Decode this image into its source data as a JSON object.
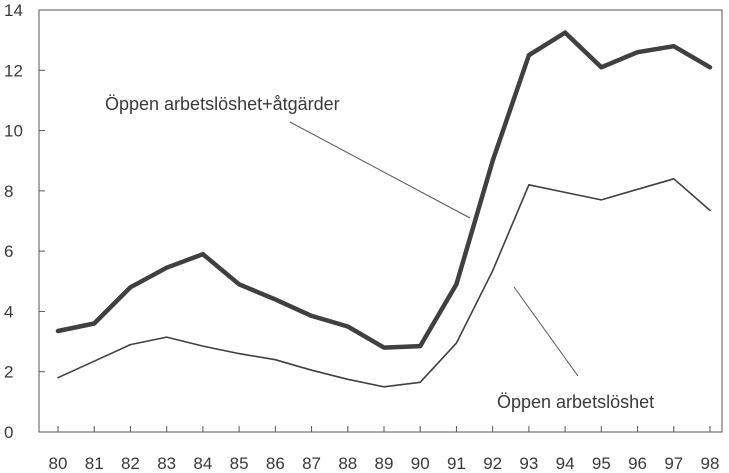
{
  "chart_data": {
    "type": "line",
    "title": "",
    "xlabel": "",
    "ylabel": "",
    "categories": [
      "80",
      "81",
      "82",
      "83",
      "84",
      "85",
      "86",
      "87",
      "88",
      "89",
      "90",
      "91",
      "92",
      "93",
      "94",
      "95",
      "96",
      "97",
      "98"
    ],
    "ylim": [
      0,
      14
    ],
    "yticks": [
      "0",
      "2",
      "4",
      "6",
      "8",
      "10",
      "12",
      "14"
    ],
    "grid": false,
    "legend": "none (series labeled by annotations with pointer lines)",
    "series": [
      {
        "name": "Öppen arbetslöshet+åtgärder",
        "style": "thick",
        "color": "#404040",
        "values": [
          3.35,
          3.6,
          4.8,
          5.45,
          5.9,
          4.9,
          4.4,
          3.85,
          3.5,
          2.8,
          2.85,
          4.9,
          9.0,
          12.5,
          13.25,
          12.1,
          12.6,
          12.8,
          12.1
        ]
      },
      {
        "name": "Öppen arbetslöshet",
        "style": "thin",
        "color": "#404040",
        "values": [
          1.8,
          2.35,
          2.9,
          3.15,
          2.85,
          2.6,
          2.4,
          2.05,
          1.75,
          1.5,
          1.65,
          2.95,
          5.35,
          8.2,
          7.95,
          7.7,
          8.05,
          8.4,
          7.35
        ]
      }
    ],
    "annotations": [
      {
        "text": "Öppen arbetslöshet+åtgärder",
        "series": 0,
        "pointer_at_x": "92"
      },
      {
        "text": "Öppen arbetslöshet",
        "series": 1,
        "pointer_at_x": "92"
      }
    ]
  }
}
